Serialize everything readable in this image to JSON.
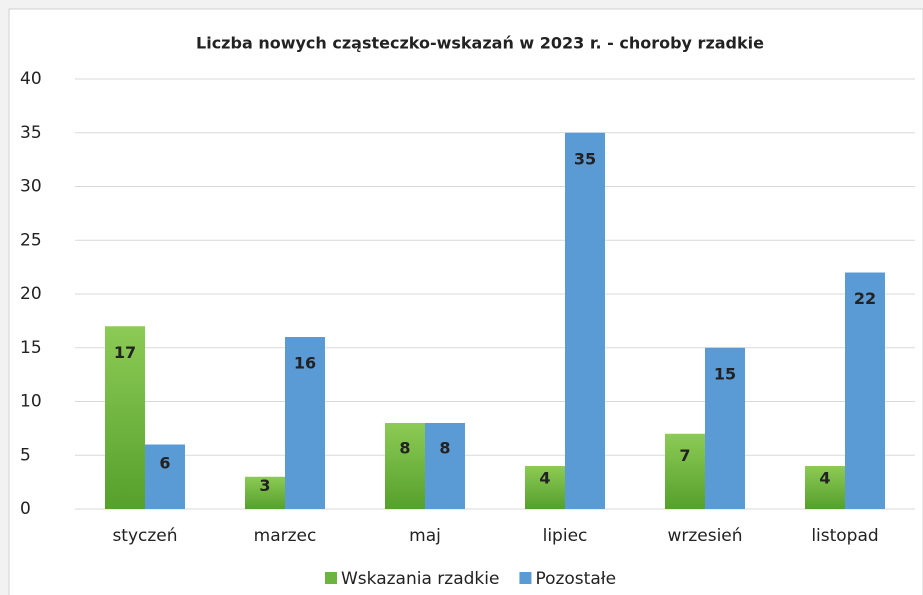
{
  "chart_data": {
    "type": "bar",
    "title": "Liczba nowych cząsteczko-wskazań w 2023 r. - choroby rzadkie",
    "categories": [
      "styczeń",
      "marzec",
      "maj",
      "lipiec",
      "wrzesień",
      "listopad"
    ],
    "series": [
      {
        "name": "Wskazania rzadkie",
        "color": "#6cb33f",
        "values": [
          17,
          3,
          8,
          4,
          7,
          4
        ]
      },
      {
        "name": "Pozostałe",
        "color": "#5b9bd5",
        "values": [
          6,
          16,
          8,
          35,
          15,
          22
        ]
      }
    ],
    "ylim": [
      0,
      40
    ],
    "yticks": [
      0,
      5,
      10,
      15,
      20,
      25,
      30,
      35,
      40
    ],
    "grid": true,
    "legend": "bottom"
  }
}
